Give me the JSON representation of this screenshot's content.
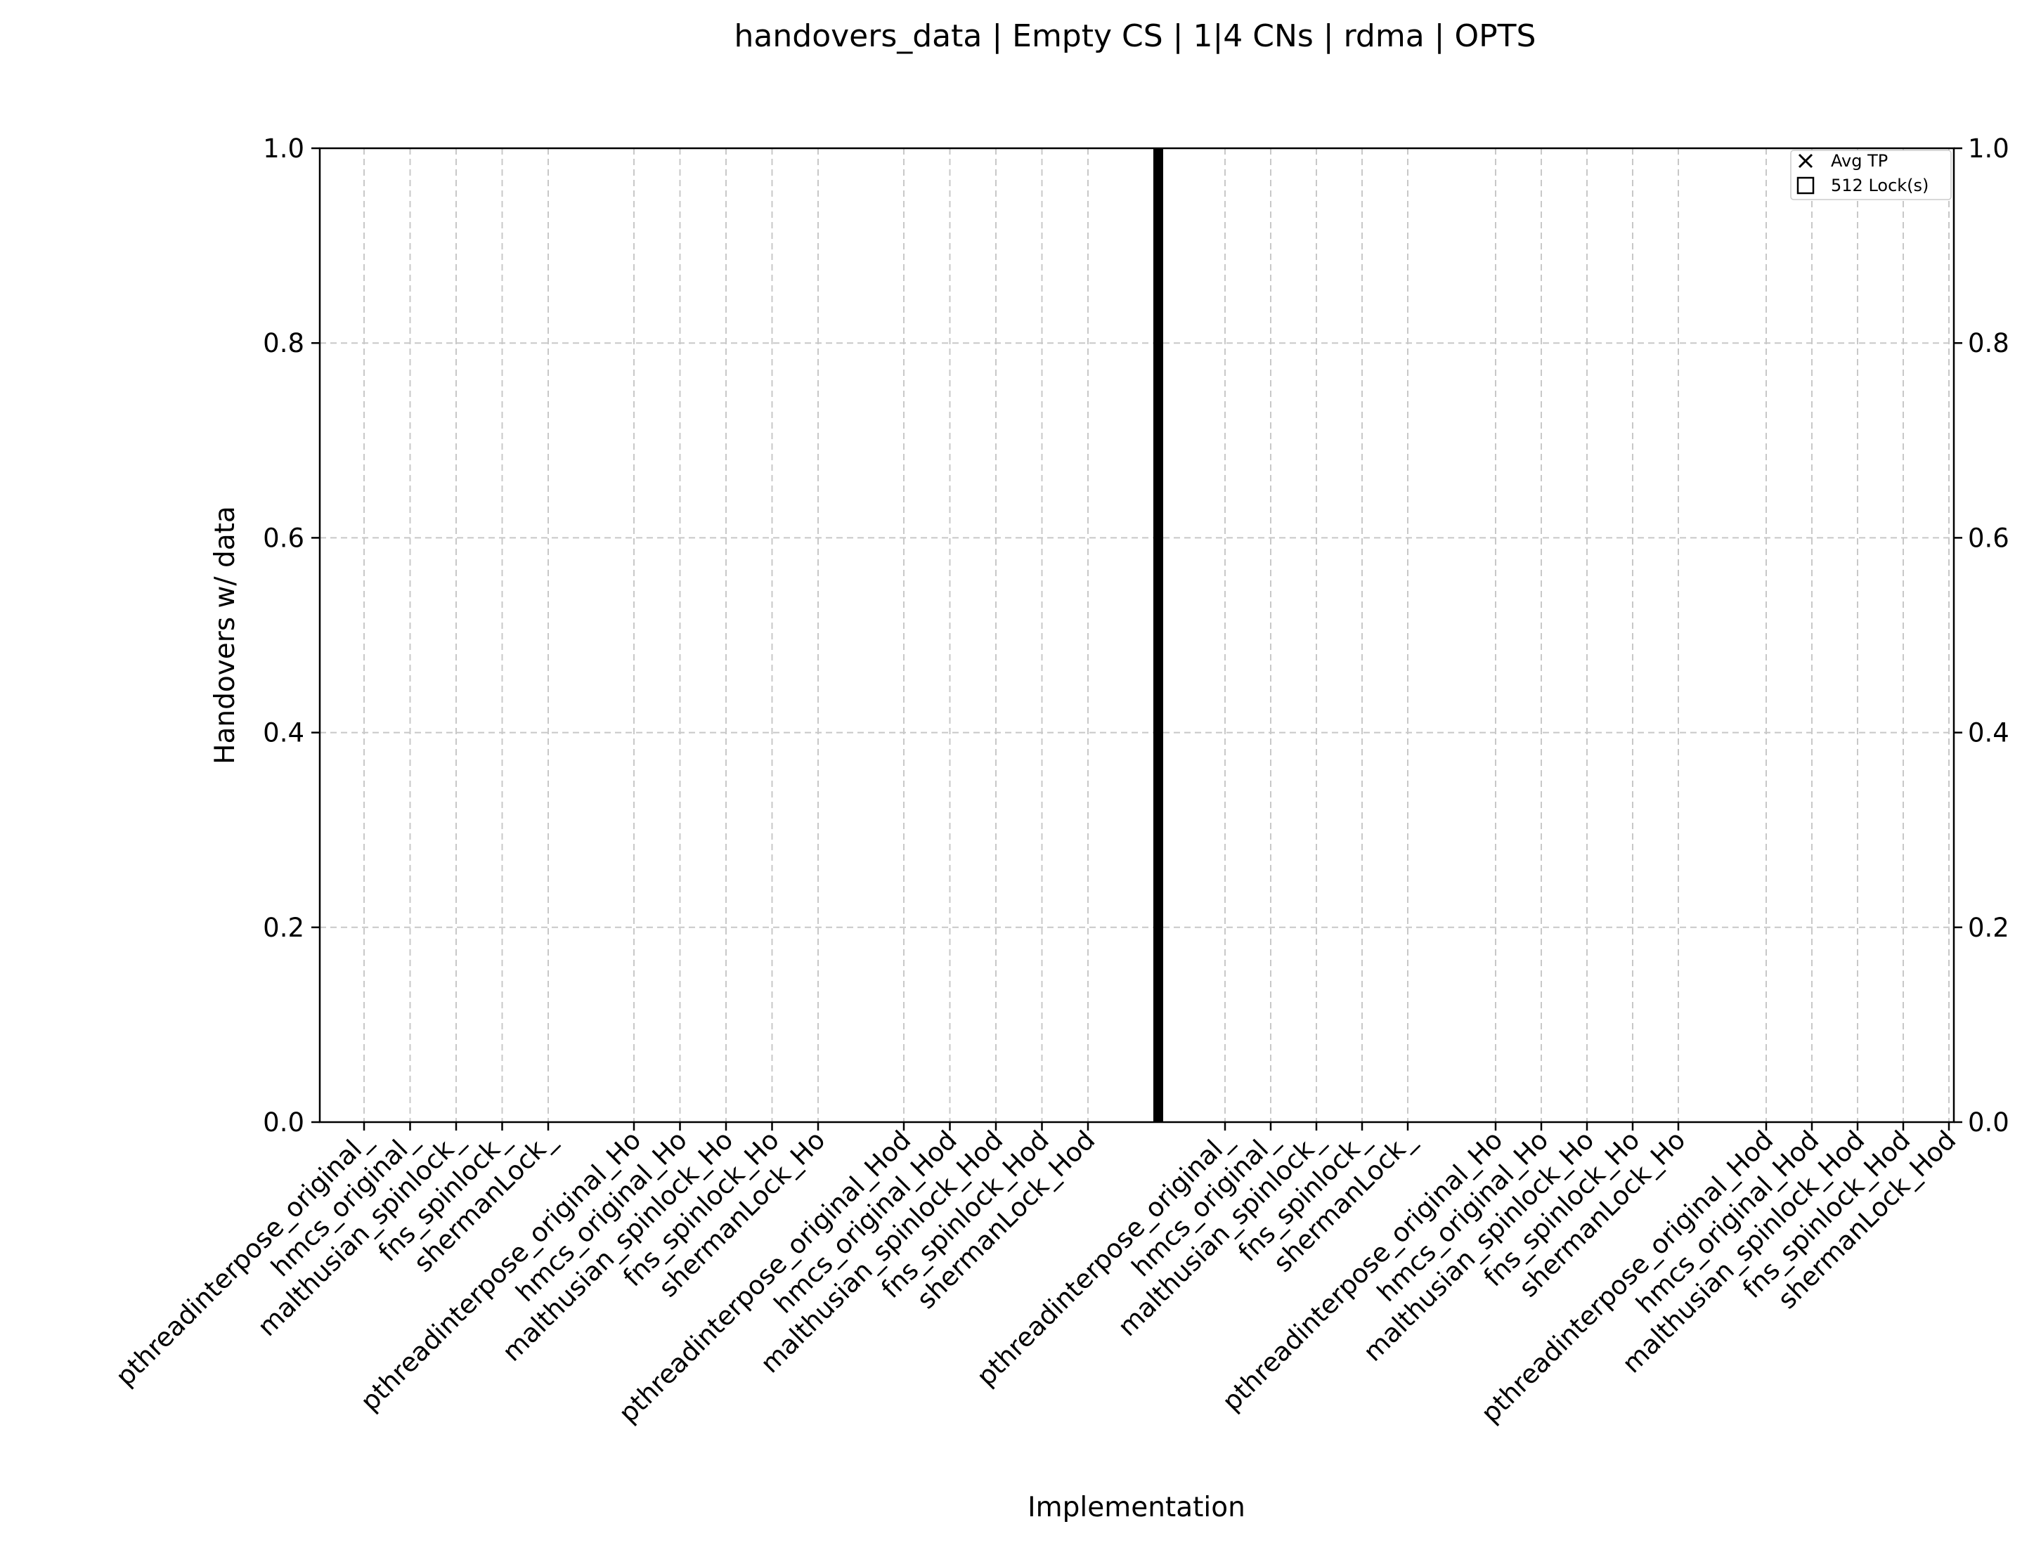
{
  "chart_data": {
    "type": "bar",
    "title": "handovers_data | Empty CS | 1|4 CNs | rdma | OPTS",
    "xlabel": "Implementation",
    "ylabel": "Handovers w/ data",
    "ylim": [
      0,
      1.0
    ],
    "yticks": [
      "0.0",
      "0.2",
      "0.4",
      "0.6",
      "0.8",
      "1.0"
    ],
    "right_yticks": [
      "0.0",
      "0.2",
      "0.4",
      "0.6",
      "0.8",
      "1.0"
    ],
    "grid": true,
    "legend_position": "top-right",
    "legend": [
      {
        "marker": "x",
        "label": "Avg TP"
      },
      {
        "marker": "square",
        "label": "512 Lock(s)"
      }
    ],
    "categories": [
      "pthreadinterpose_original_",
      "hmcs_original_",
      "malthusian_spinlock_",
      "fns_spinlock_",
      "shermanLock_",
      "pthreadinterpose_original_Ho",
      "hmcs_original_Ho",
      "malthusian_spinlock_Ho",
      "fns_spinlock_Ho",
      "shermanLock_Ho",
      "pthreadinterpose_original_Hod",
      "hmcs_original_Hod",
      "malthusian_spinlock_Hod",
      "fns_spinlock_Hod",
      "shermanLock_Hod",
      "pthreadinterpose_original_",
      "hmcs_original_",
      "malthusian_spinlock_",
      "fns_spinlock_",
      "shermanLock_",
      "pthreadinterpose_original_Ho",
      "hmcs_original_Ho",
      "malthusian_spinlock_Ho",
      "fns_spinlock_Ho",
      "shermanLock_Ho",
      "pthreadinterpose_original_Hod",
      "hmcs_original_Hod",
      "malthusian_spinlock_Hod",
      "fns_spinlock_Hod",
      "shermanLock_Hod"
    ],
    "series": [
      {
        "name": "512 Lock(s)",
        "values": [
          0,
          0,
          0,
          0,
          0,
          0,
          0,
          0,
          0,
          0,
          0,
          0,
          0,
          0,
          0,
          0,
          0,
          0,
          0,
          0,
          0,
          0,
          0,
          0,
          0,
          0,
          0,
          0,
          0,
          0
        ]
      }
    ],
    "separator": "vertical line between the two groups of 15 implementations"
  }
}
